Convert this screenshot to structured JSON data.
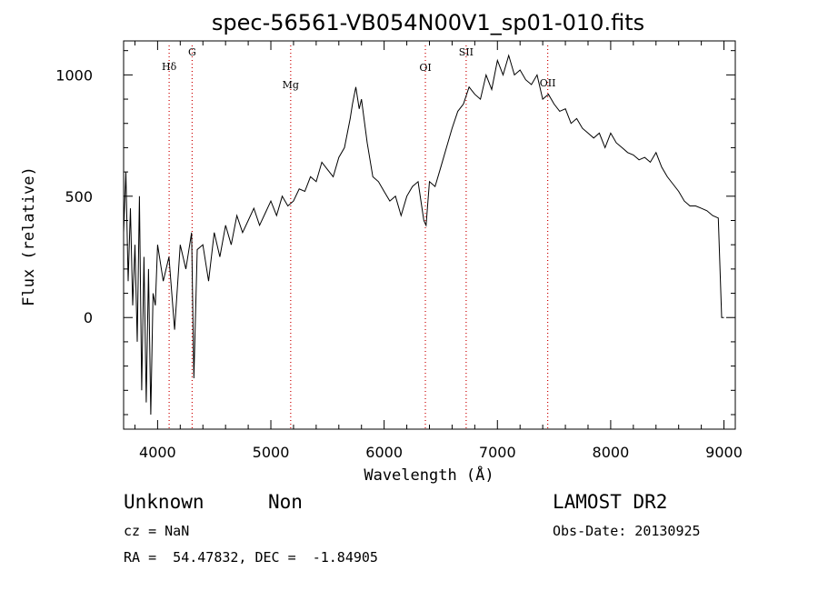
{
  "chart_data": {
    "type": "line",
    "title": "spec-56561-VB054N00V1_sp01-010.fits",
    "xlabel": "Wavelength (Å)",
    "ylabel": "Flux (relative)",
    "xlim": [
      3700,
      9100
    ],
    "ylim": [
      -460,
      1140
    ],
    "x_ticks": [
      4000,
      5000,
      6000,
      7000,
      8000,
      9000
    ],
    "x_tick_labels": [
      "4000",
      "5000",
      "6000",
      "7000",
      "8000",
      "9000"
    ],
    "y_ticks": [
      0,
      500,
      1000
    ],
    "y_tick_labels": [
      "0",
      "500",
      "1000"
    ],
    "grid": false,
    "series": [
      {
        "x": [
          3700,
          3720,
          3740,
          3760,
          3780,
          3800,
          3820,
          3840,
          3860,
          3880,
          3900,
          3920,
          3940,
          3960,
          3980,
          4000,
          4050,
          4100,
          4150,
          4200,
          4250,
          4300,
          4320,
          4350,
          4400,
          4450,
          4500,
          4550,
          4600,
          4650,
          4700,
          4750,
          4800,
          4850,
          4900,
          4950,
          5000,
          5050,
          5100,
          5150,
          5200,
          5250,
          5300,
          5350,
          5400,
          5450,
          5500,
          5550,
          5600,
          5650,
          5700,
          5720,
          5750,
          5780,
          5800,
          5850,
          5900,
          5950,
          6000,
          6050,
          6100,
          6150,
          6200,
          6250,
          6300,
          6350,
          6370,
          6400,
          6450,
          6500,
          6550,
          6600,
          6650,
          6700,
          6750,
          6800,
          6850,
          6900,
          6950,
          7000,
          7050,
          7100,
          7150,
          7200,
          7250,
          7300,
          7350,
          7400,
          7450,
          7500,
          7550,
          7600,
          7650,
          7700,
          7750,
          7800,
          7850,
          7900,
          7950,
          8000,
          8050,
          8100,
          8150,
          8200,
          8250,
          8300,
          8350,
          8400,
          8450,
          8500,
          8550,
          8600,
          8650,
          8700,
          8750,
          8800,
          8850,
          8900,
          8950,
          8980,
          8990,
          9000
        ],
        "y": [
          350,
          600,
          150,
          450,
          50,
          300,
          -100,
          500,
          -300,
          250,
          -350,
          200,
          -400,
          100,
          50,
          300,
          150,
          250,
          -50,
          300,
          200,
          350,
          -250,
          280,
          300,
          150,
          350,
          250,
          380,
          300,
          420,
          350,
          400,
          450,
          380,
          430,
          480,
          420,
          500,
          460,
          480,
          530,
          520,
          580,
          560,
          640,
          610,
          580,
          660,
          700,
          820,
          880,
          950,
          860,
          900,
          720,
          580,
          560,
          520,
          480,
          500,
          420,
          500,
          540,
          560,
          400,
          380,
          560,
          540,
          620,
          700,
          780,
          850,
          880,
          950,
          920,
          900,
          1000,
          940,
          1060,
          1000,
          1080,
          1000,
          1020,
          980,
          960,
          1000,
          900,
          920,
          880,
          850,
          860,
          800,
          820,
          780,
          760,
          740,
          760,
          700,
          760,
          720,
          700,
          680,
          670,
          650,
          660,
          640,
          680,
          620,
          580,
          550,
          520,
          480,
          460,
          460,
          450,
          440,
          420,
          410,
          0,
          0,
          0
        ]
      }
    ],
    "lines": [
      {
        "label": "Hδ",
        "x": 4102
      },
      {
        "label": "G",
        "x": 4305
      },
      {
        "label": "Mg",
        "x": 5175
      },
      {
        "label": "OI",
        "x": 6364
      },
      {
        "label": "SII",
        "x": 6724
      },
      {
        "label": "OII",
        "x": 7444
      }
    ]
  },
  "info": {
    "class_label": "Unknown",
    "subclass_label": "Non",
    "survey_label": "LAMOST DR2",
    "cz_text": "cz = NaN",
    "obs_date_text": "Obs-Date: 20130925",
    "radec_text": "RA =  54.47832, DEC =  -1.84905"
  },
  "colors": {
    "spectrum": "#000000",
    "line_marker": "#cc0000",
    "axis": "#000000"
  }
}
